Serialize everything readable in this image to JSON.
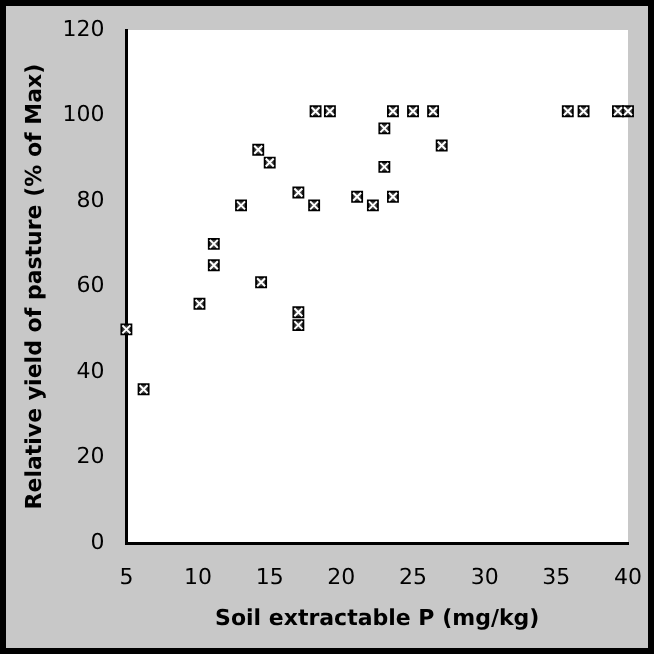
{
  "chart_data": {
    "type": "scatter",
    "xlabel": "Soil extractable P (mg/kg)",
    "ylabel": "Relative yield of pasture (% of Max)",
    "x": [
      5,
      6.2,
      10.1,
      11.1,
      11.1,
      13,
      14.2,
      14.4,
      15,
      17,
      17,
      17,
      18.1,
      18.2,
      19.2,
      21.1,
      22.2,
      23,
      23,
      23.6,
      23.6,
      25,
      26.4,
      27,
      35.8,
      36.9,
      39.3,
      40
    ],
    "series": [
      {
        "color": "#404040",
        "values": [
          50,
          36,
          56,
          65,
          70,
          79,
          92,
          61,
          89,
          82,
          54,
          51,
          79,
          101,
          101,
          81,
          79,
          97,
          88,
          81,
          101,
          101,
          101,
          93,
          101,
          101,
          101,
          101
        ]
      }
    ],
    "xlim": [
      5,
      40
    ],
    "xticks": [
      5,
      10,
      15,
      20,
      25,
      30,
      35,
      40
    ],
    "ylim": [
      0,
      120
    ],
    "yticks": [
      0,
      20,
      40,
      60,
      80,
      100,
      120
    ],
    "marker": "square",
    "grid": false,
    "legend": false
  }
}
